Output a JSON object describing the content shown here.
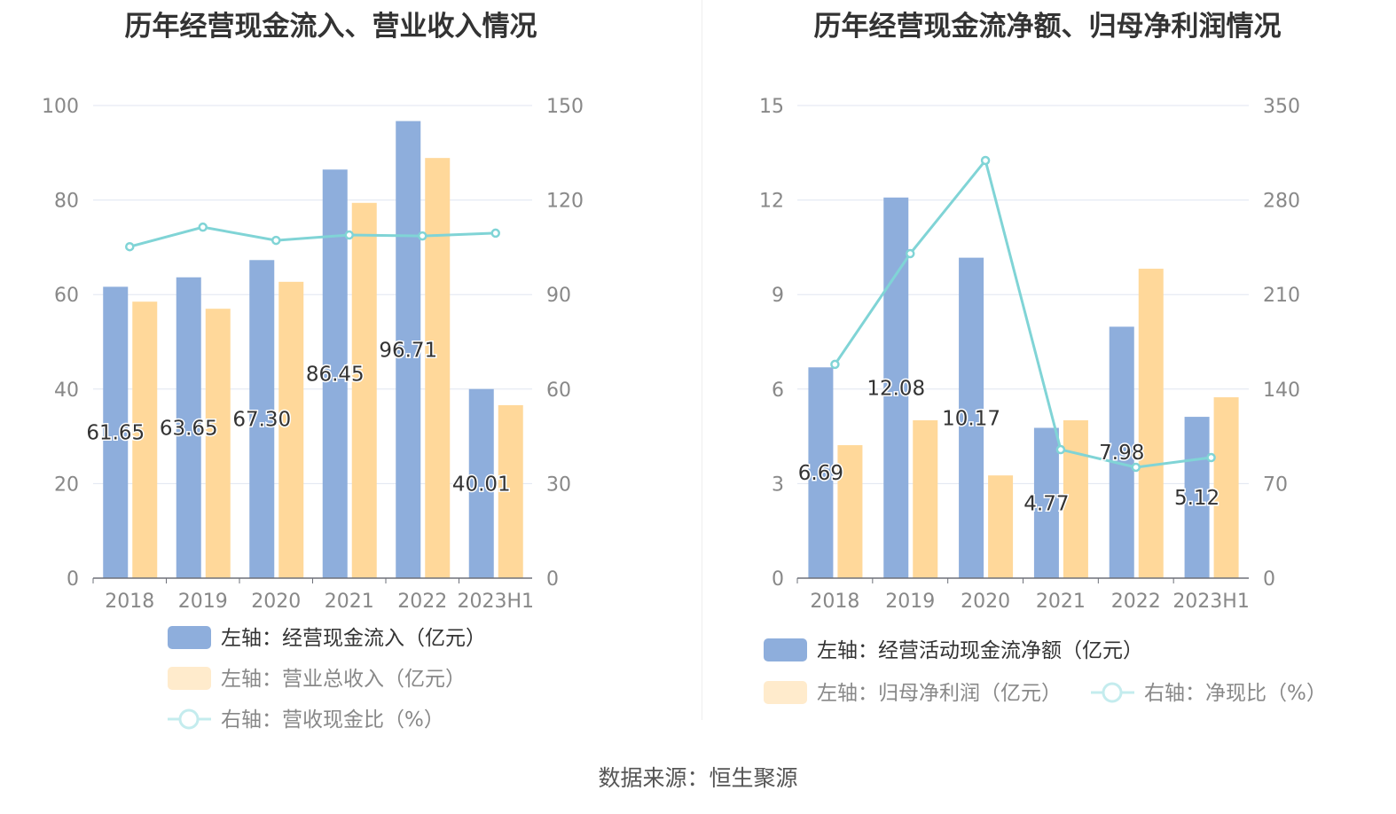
{
  "source": "数据来源：恒生聚源",
  "colors": {
    "blue": "#8eaedc",
    "orange": "#ffd89a",
    "line": "#80d4d6"
  },
  "chart_data": [
    {
      "type": "bar",
      "title": "历年经营现金流入、营业收入情况",
      "categories": [
        "2018",
        "2019",
        "2020",
        "2021",
        "2022",
        "2023H1"
      ],
      "left_axis": {
        "ylim": [
          0,
          100
        ],
        "ticks": [
          "0",
          "20",
          "40",
          "60",
          "80",
          "100"
        ]
      },
      "right_axis": {
        "ylim": [
          0,
          150
        ],
        "ticks": [
          "0",
          "30",
          "60",
          "90",
          "120",
          "150"
        ]
      },
      "series": [
        {
          "name": "左轴：经营现金流入（亿元）",
          "type": "bar",
          "axis": "left",
          "color": "#8eaedc",
          "values": [
            61.65,
            63.65,
            67.3,
            86.45,
            96.71,
            40.01
          ],
          "labels": [
            "61.65",
            "63.65",
            "67.30",
            "86.45",
            "96.71",
            "40.01"
          ]
        },
        {
          "name": "左轴：营业总收入（亿元）",
          "type": "bar",
          "axis": "left",
          "color": "#ffd89a",
          "values": [
            58.5,
            57.0,
            62.7,
            79.4,
            88.9,
            36.6
          ]
        },
        {
          "name": "右轴：营收现金比（%）",
          "type": "line",
          "axis": "right",
          "color": "#80d4d6",
          "values": [
            105.2,
            111.4,
            107.2,
            108.9,
            108.6,
            109.5
          ]
        }
      ]
    },
    {
      "type": "bar",
      "title": "历年经营现金流净额、归母净利润情况",
      "categories": [
        "2018",
        "2019",
        "2020",
        "2021",
        "2022",
        "2023H1"
      ],
      "left_axis": {
        "ylim": [
          0,
          15
        ],
        "ticks": [
          "0",
          "3",
          "6",
          "9",
          "12",
          "15"
        ]
      },
      "right_axis": {
        "ylim": [
          0,
          350
        ],
        "ticks": [
          "0",
          "70",
          "140",
          "210",
          "280",
          "350"
        ]
      },
      "series": [
        {
          "name": "左轴：经营活动现金流净额（亿元）",
          "type": "bar",
          "axis": "left",
          "color": "#8eaedc",
          "values": [
            6.69,
            12.08,
            10.17,
            4.77,
            7.98,
            5.12
          ],
          "labels": [
            "6.69",
            "12.08",
            "10.17",
            "4.77",
            "7.98",
            "5.12"
          ]
        },
        {
          "name": "左轴：归母净利润（亿元）",
          "type": "bar",
          "axis": "left",
          "color": "#ffd89a",
          "values": [
            4.22,
            5.01,
            3.26,
            5.01,
            9.82,
            5.74
          ]
        },
        {
          "name": "右轴：净现比（%）",
          "type": "line",
          "axis": "right",
          "color": "#80d4d6",
          "values": [
            158.3,
            240.3,
            309.3,
            95.2,
            82.1,
            89.3
          ]
        }
      ]
    }
  ]
}
